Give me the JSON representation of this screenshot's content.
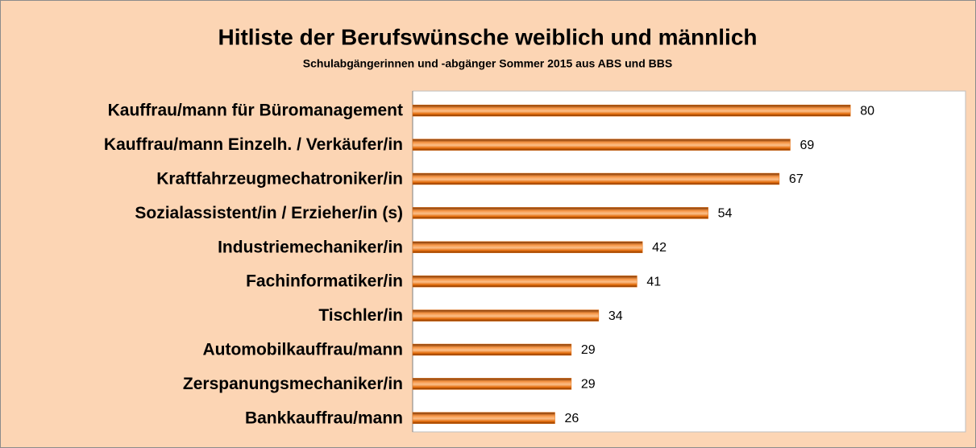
{
  "chart_data": {
    "type": "bar",
    "orientation": "horizontal",
    "title": "Hitliste der Berufswünsche weiblich und männlich",
    "subtitle": "Schulabgängerinnen und -abgänger Sommer 2015 aus ABS und BBS",
    "categories": [
      "Kauffrau/mann für Büromanagement",
      "Kauffrau/mann Einzelh. / Verkäufer/in",
      "Kraftfahrzeugmechatroniker/in",
      "Sozialassistent/in / Erzieher/in (s)",
      "Industriemechaniker/in",
      "Fachinformatiker/in",
      "Tischler/in",
      "Automobilkauffrau/mann",
      "Zerspanungsmechaniker/in",
      "Bankkauffrau/mann"
    ],
    "values": [
      80,
      69,
      67,
      54,
      42,
      41,
      34,
      29,
      29,
      26
    ],
    "color": "#e46c0a",
    "xlim": [
      0,
      100
    ]
  }
}
